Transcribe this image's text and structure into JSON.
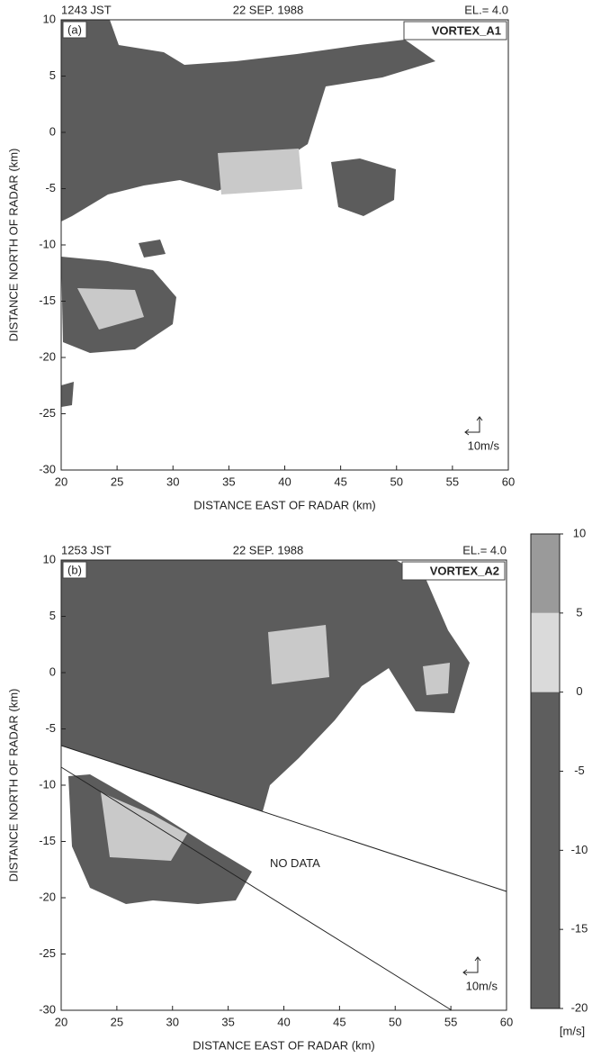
{
  "chart_data": [
    {
      "type": "radar-ppi",
      "header_left": "1243 JST",
      "header_center": "22 SEP. 1988",
      "header_right": "EL.= 4.0",
      "panel_label": "(a)",
      "title": "VORTEX_A1",
      "scale_label": "10m/s",
      "xlabel": "DISTANCE EAST OF RADAR (km)",
      "ylabel": "DISTANCE NORTH OF RADAR (km)",
      "xlim": [
        20,
        60
      ],
      "ylim": [
        -30,
        10
      ],
      "xticks": [
        20,
        25,
        30,
        35,
        40,
        45,
        50,
        55,
        60
      ],
      "yticks": [
        -30,
        -25,
        -20,
        -15,
        -10,
        -5,
        0,
        5,
        10
      ]
    },
    {
      "type": "radar-ppi",
      "header_left": "1253 JST",
      "header_center": "22 SEP. 1988",
      "header_right": "EL.= 4.0",
      "panel_label": "(b)",
      "title": "VORTEX_A2",
      "scale_label": "10m/s",
      "annotation": "NO DATA",
      "xlabel": "DISTANCE EAST OF RADAR (km)",
      "ylabel": "DISTANCE NORTH OF RADAR (km)",
      "xlim": [
        20,
        60
      ],
      "ylim": [
        -30,
        10
      ],
      "xticks": [
        20,
        25,
        30,
        35,
        40,
        45,
        50,
        55,
        60
      ],
      "yticks": [
        -30,
        -25,
        -20,
        -15,
        -10,
        -5,
        0,
        5,
        10
      ]
    },
    {
      "type": "colorbar",
      "unit": "[m/s]",
      "ylim": [
        -20,
        10
      ],
      "yticks": [
        -20,
        -15,
        -10,
        -5,
        0,
        5,
        10
      ],
      "bands": [
        {
          "from": 5,
          "to": 10,
          "color": "#9a9a9a"
        },
        {
          "from": 0,
          "to": 5,
          "color": "#dadada"
        },
        {
          "from": -20,
          "to": 0,
          "color": "#5e5e5e"
        }
      ]
    }
  ]
}
